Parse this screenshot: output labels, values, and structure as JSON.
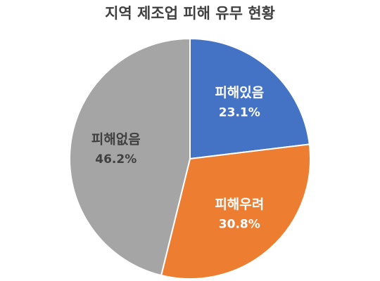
{
  "chart_data": {
    "type": "pie",
    "title": "지역 제조업 피해 유무 현황",
    "categories": [
      "피해있음",
      "피해우려",
      "피해없음"
    ],
    "values": [
      23.1,
      30.8,
      46.2
    ],
    "value_labels": [
      "23.1%",
      "30.8%",
      "46.2%"
    ],
    "colors": [
      "#4472c4",
      "#ed7d31",
      "#a5a5a5"
    ]
  }
}
